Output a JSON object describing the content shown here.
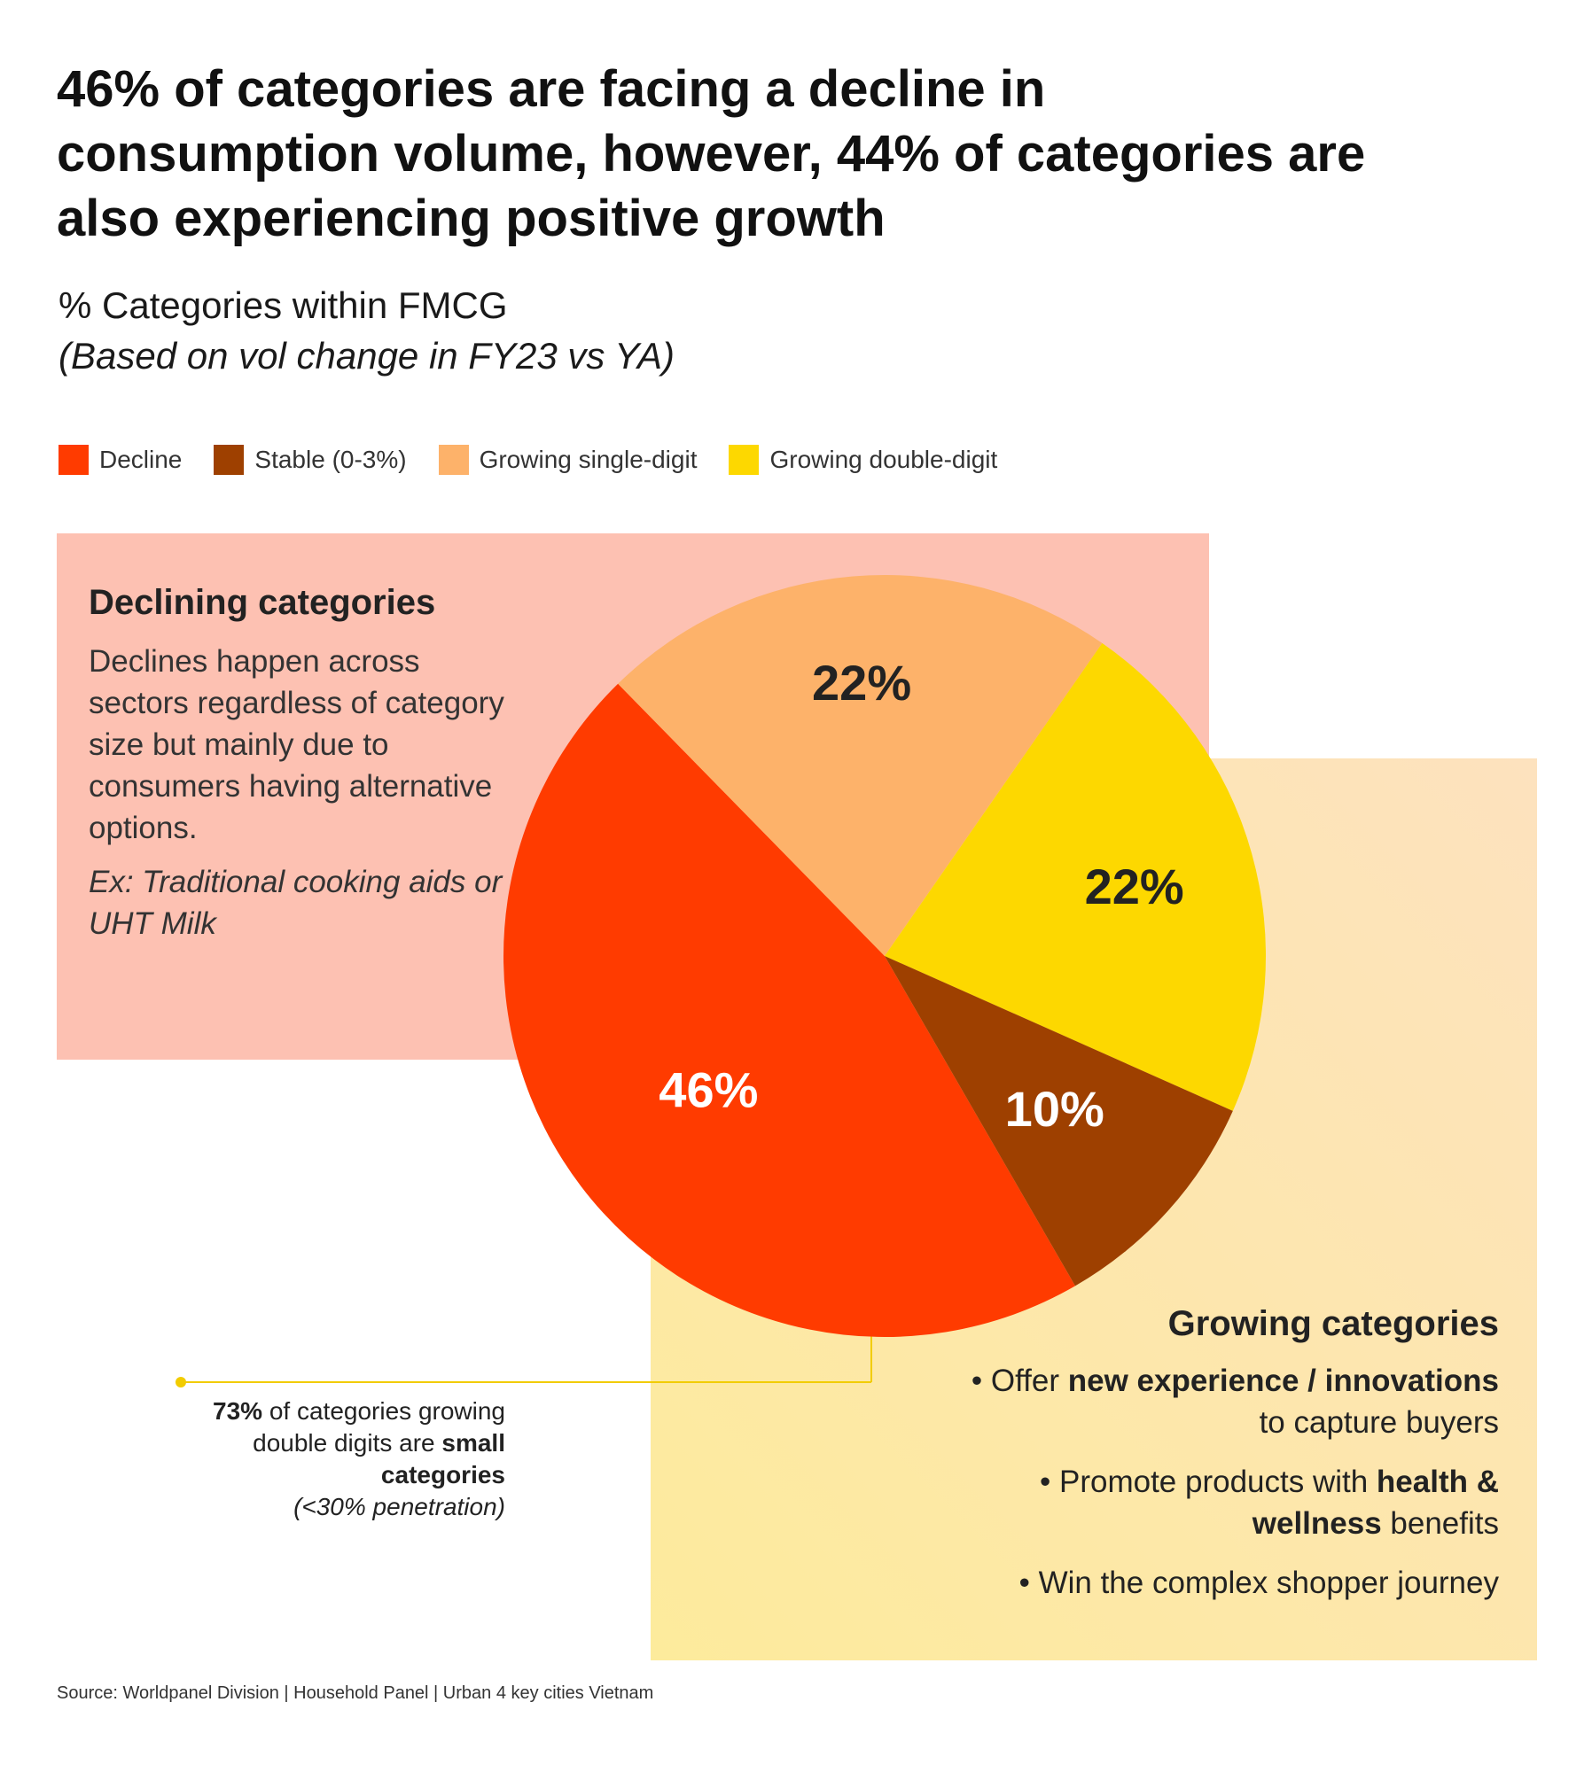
{
  "title": {
    "line1": "46% of categories are facing a decline in",
    "line2": "consumption volume, however, 44% of categories are",
    "line3": "also experiencing positive growth"
  },
  "subtitle": "% Categories within FMCG",
  "subnote": "(Based on vol change in FY23 vs YA)",
  "legend": [
    {
      "label": "Decline",
      "color": "#FF3B00"
    },
    {
      "label": "Stable (0-3%)",
      "color": "#9E4000"
    },
    {
      "label": "Growing single-digit",
      "color": "#FDB26A"
    },
    {
      "label": "Growing double-digit",
      "color": "#FDD800"
    }
  ],
  "declining": {
    "heading": "Declining categories",
    "body": "Declines happen across sectors regardless of category size but mainly due to consumers having alternative options.",
    "example": "Ex: Traditional cooking aids or UHT Milk"
  },
  "growing": {
    "heading": "Growing categories",
    "bullet1_pre": "Offer ",
    "bullet1_bold": "new experience / innovations",
    "bullet1_post": " to capture buyers",
    "bullet2_pre": "Promote products with ",
    "bullet2_bold": "health & wellness",
    "bullet2_post": " benefits",
    "bullet3": "Win the complex shopper journey"
  },
  "callout": {
    "bold1": "73%",
    "text1": " of categories growing double digits are ",
    "bold2": "small categories",
    "note": "(<30% penetration)"
  },
  "source": "Source: Worldpanel Division | Household Panel | Urban 4 key cities Vietnam",
  "chart_data": {
    "type": "pie",
    "title": "% Categories within FMCG",
    "subtitle": "(Based on vol change in FY23 vs YA)",
    "categories": [
      "Decline",
      "Growing single-digit",
      "Growing double-digit",
      "Stable (0-3%)"
    ],
    "values": [
      46,
      22,
      22,
      10
    ],
    "labels": [
      "46%",
      "22%",
      "22%",
      "10%"
    ],
    "colors": [
      "#FF3B00",
      "#FDB26A",
      "#FDD800",
      "#9E4000"
    ],
    "label_colors": [
      "#ffffff",
      "#222222",
      "#222222",
      "#ffffff"
    ],
    "legend_position": "top-left"
  }
}
